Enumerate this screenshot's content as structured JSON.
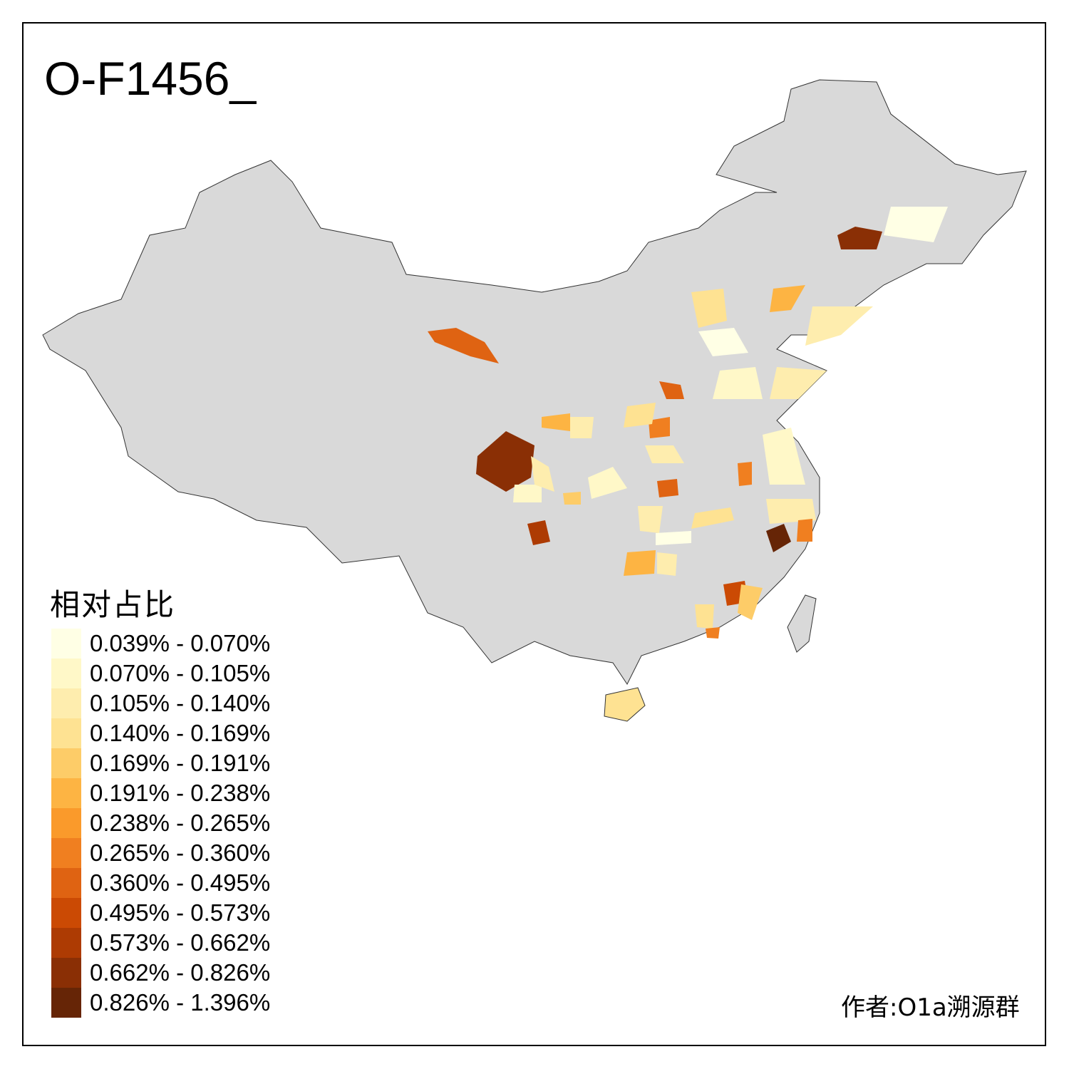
{
  "title": "O-F1456_",
  "legend": {
    "title": "相对占比",
    "items": [
      {
        "label": "0.039% - 0.070%",
        "color": "#FFFFE5"
      },
      {
        "label": "0.070% - 0.105%",
        "color": "#FFF8C8"
      },
      {
        "label": "0.105% - 0.140%",
        "color": "#FEEDAE"
      },
      {
        "label": "0.140% - 0.169%",
        "color": "#FEE292"
      },
      {
        "label": "0.169% - 0.191%",
        "color": "#FDCC68"
      },
      {
        "label": "0.191% - 0.238%",
        "color": "#FDB443"
      },
      {
        "label": "0.238% - 0.265%",
        "color": "#FA9A2B"
      },
      {
        "label": "0.265% - 0.360%",
        "color": "#F07F20"
      },
      {
        "label": "0.360% - 0.495%",
        "color": "#DF6312"
      },
      {
        "label": "0.495% - 0.573%",
        "color": "#CB4A04"
      },
      {
        "label": "0.573% - 0.662%",
        "color": "#AD3B03"
      },
      {
        "label": "0.662% - 0.826%",
        "color": "#8A2F05"
      },
      {
        "label": "0.826% - 1.396%",
        "color": "#662506"
      }
    ]
  },
  "map": {
    "base_color": "#D9D9D9",
    "border_color": "#333333"
  },
  "author": "作者:O1a溯源群"
}
